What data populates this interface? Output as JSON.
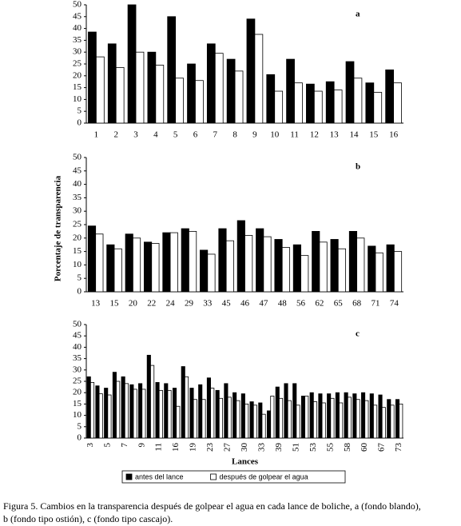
{
  "chart_data": [
    {
      "type": "bar",
      "title": "a",
      "categories": [
        "1",
        "2",
        "3",
        "4",
        "5",
        "6",
        "7",
        "8",
        "9",
        "10",
        "11",
        "12",
        "13",
        "14",
        "15",
        "16"
      ],
      "series": [
        {
          "color": "#000000",
          "values": [
            38.5,
            33.5,
            50,
            30,
            45,
            25,
            33.5,
            27,
            44,
            20.5,
            27,
            16.5,
            17.5,
            26,
            17,
            22.5
          ]
        },
        {
          "color": "#ffffff",
          "values": [
            28,
            23.5,
            30,
            24.5,
            19,
            18,
            29.5,
            22,
            37.5,
            13.5,
            17,
            13.5,
            14,
            19,
            13,
            17
          ]
        }
      ],
      "ylim": [
        0,
        50
      ],
      "yticks": [
        0,
        5,
        10,
        15,
        20,
        25,
        30,
        35,
        40,
        45,
        50
      ]
    },
    {
      "type": "bar",
      "title": "b",
      "ylabel": "Porcentaje de transparencia",
      "categories": [
        "13",
        "15",
        "20",
        "22",
        "24",
        "29",
        "33",
        "45",
        "46",
        "47",
        "48",
        "56",
        "62",
        "65",
        "68",
        "71",
        "74"
      ],
      "series": [
        {
          "color": "#000000",
          "values": [
            24.5,
            17.5,
            21.5,
            18.5,
            22,
            23.5,
            15.5,
            23.5,
            26.5,
            23.5,
            19.5,
            17.5,
            22.5,
            19.5,
            22.5,
            17,
            17.5
          ]
        },
        {
          "color": "#ffffff",
          "values": [
            21.5,
            16,
            20,
            18,
            22,
            22.5,
            14,
            19,
            21,
            20.5,
            16.5,
            13.5,
            18.5,
            16,
            20,
            14.5,
            15
          ]
        }
      ],
      "ylim": [
        0,
        50
      ],
      "yticks": [
        0,
        5,
        10,
        15,
        20,
        25,
        30,
        35,
        40,
        45,
        50
      ]
    },
    {
      "type": "bar",
      "title": "c",
      "xlabel": "Lances",
      "categories": [
        "3",
        null,
        "5",
        null,
        "7",
        null,
        "9",
        null,
        "11",
        null,
        "16",
        null,
        "19",
        null,
        "23",
        null,
        "27",
        null,
        "30",
        null,
        "33",
        null,
        "39",
        null,
        "51",
        null,
        "53",
        null,
        "55",
        null,
        "58",
        null,
        "60",
        null,
        "67",
        null,
        "73"
      ],
      "series": [
        {
          "name": "antes del lance",
          "color": "#000000",
          "values": [
            27,
            23,
            22,
            29,
            27,
            23.5,
            24,
            36.5,
            24.5,
            24,
            22,
            31.5,
            22,
            23.5,
            26.5,
            21,
            24,
            20,
            19.5,
            16,
            15.5,
            12,
            22.5,
            24,
            24,
            18.5,
            20,
            19.5,
            19.5,
            20,
            20,
            19.5,
            20,
            19.5,
            19,
            17,
            17
          ]
        },
        {
          "name": "después de golpear el agua",
          "color": "#ffffff",
          "values": [
            24.5,
            19.5,
            19,
            25,
            24,
            21.5,
            21.5,
            32,
            21,
            21,
            14,
            27,
            17,
            17,
            22,
            17.5,
            18,
            16.5,
            15,
            14.5,
            10.5,
            18.5,
            17.5,
            16.5,
            14.5,
            18.5,
            16,
            15.5,
            17.5,
            15.5,
            18,
            17,
            16.5,
            14.5,
            13.5,
            14.5,
            15
          ]
        }
      ],
      "ylim": [
        0,
        50
      ],
      "yticks": [
        0,
        5,
        10,
        15,
        20,
        25,
        30,
        35,
        40,
        45,
        50
      ]
    }
  ],
  "caption": [
    "Figura 5. Cambios en la transparencia después de golpear el agua en cada lance de boliche, a (fondo blando),",
    "b (fondo tipo ostión), c (fondo tipo cascajo)."
  ]
}
